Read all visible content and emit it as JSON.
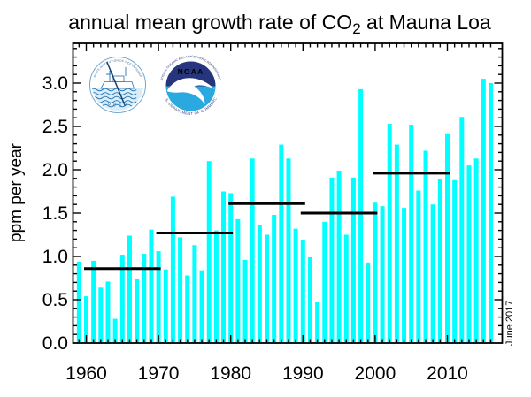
{
  "title": {
    "prefix": "annual mean growth rate of CO",
    "subscript": "2",
    "suffix": " at Mauna Loa"
  },
  "y_axis": {
    "label": "ppm per year",
    "tick_labels": [
      "0.0",
      "0.5",
      "1.0",
      "1.5",
      "2.0",
      "2.5",
      "3.0"
    ],
    "tick_values": [
      0.0,
      0.5,
      1.0,
      1.5,
      2.0,
      2.5,
      3.0
    ]
  },
  "x_axis": {
    "tick_labels": [
      "1960",
      "1970",
      "1980",
      "1990",
      "2000",
      "2010"
    ],
    "tick_values": [
      1960,
      1970,
      1980,
      1990,
      2000,
      2010
    ]
  },
  "watermark": {
    "text": "June 2017"
  },
  "logos": {
    "scripps": {
      "ring_text": "SCRIPPS INSTITUTION OF OCEANOGRAPHY",
      "bottom_text": "U C S D"
    },
    "noaa": {
      "wordmark": "NOAA",
      "ring_top_text": "NATIONAL OCEANIC AND ATMOSPHERIC ADMINISTRATION",
      "ring_bottom_text": "U.S. DEPARTMENT OF COMMERCE"
    }
  },
  "colors": {
    "bar": "#00ffff",
    "axis": "#000000",
    "decade_line": "#000000",
    "scripps_blue": "#2e6da4",
    "scripps_water": "#d9edf8",
    "noaa_navy": "#27357e",
    "noaa_lightblue": "#2aa9e0"
  },
  "chart_data": {
    "type": "bar",
    "title": "annual mean growth rate of CO2 at Mauna Loa",
    "xlabel": "",
    "ylabel": "ppm per year",
    "xlim": [
      1958.2,
      2017.6
    ],
    "ylim": [
      0,
      3.46
    ],
    "grid": false,
    "legend": "none",
    "bar_color": "#00ffff",
    "years": [
      1959,
      1960,
      1961,
      1962,
      1963,
      1964,
      1965,
      1966,
      1967,
      1968,
      1969,
      1970,
      1971,
      1972,
      1973,
      1974,
      1975,
      1976,
      1977,
      1978,
      1979,
      1980,
      1981,
      1982,
      1983,
      1984,
      1985,
      1986,
      1987,
      1988,
      1989,
      1990,
      1991,
      1992,
      1993,
      1994,
      1995,
      1996,
      1997,
      1998,
      1999,
      2000,
      2001,
      2002,
      2003,
      2004,
      2005,
      2006,
      2007,
      2008,
      2009,
      2010,
      2011,
      2012,
      2013,
      2014,
      2015,
      2016
    ],
    "values": [
      0.94,
      0.54,
      0.95,
      0.64,
      0.71,
      0.28,
      1.02,
      1.24,
      0.74,
      1.03,
      1.31,
      1.06,
      0.85,
      1.69,
      1.22,
      0.78,
      1.13,
      0.84,
      2.1,
      1.3,
      1.75,
      1.73,
      1.43,
      0.96,
      2.13,
      1.36,
      1.25,
      1.48,
      2.29,
      2.13,
      1.32,
      1.19,
      0.99,
      0.48,
      1.4,
      1.91,
      1.99,
      1.25,
      1.91,
      2.93,
      0.93,
      1.62,
      1.58,
      2.53,
      2.29,
      1.56,
      2.52,
      1.76,
      2.22,
      1.6,
      1.89,
      2.42,
      1.88,
      2.61,
      2.05,
      2.13,
      3.05,
      3.0
    ],
    "decade_averages": [
      {
        "label": "1960s",
        "start": 1960,
        "end": 1970,
        "value": 0.86
      },
      {
        "label": "1970s",
        "start": 1970,
        "end": 1980,
        "value": 1.27
      },
      {
        "label": "1980s",
        "start": 1980,
        "end": 1990,
        "value": 1.61
      },
      {
        "label": "1990s",
        "start": 1990,
        "end": 2000,
        "value": 1.5
      },
      {
        "label": "2000s",
        "start": 2000,
        "end": 2010,
        "value": 1.96
      }
    ]
  }
}
